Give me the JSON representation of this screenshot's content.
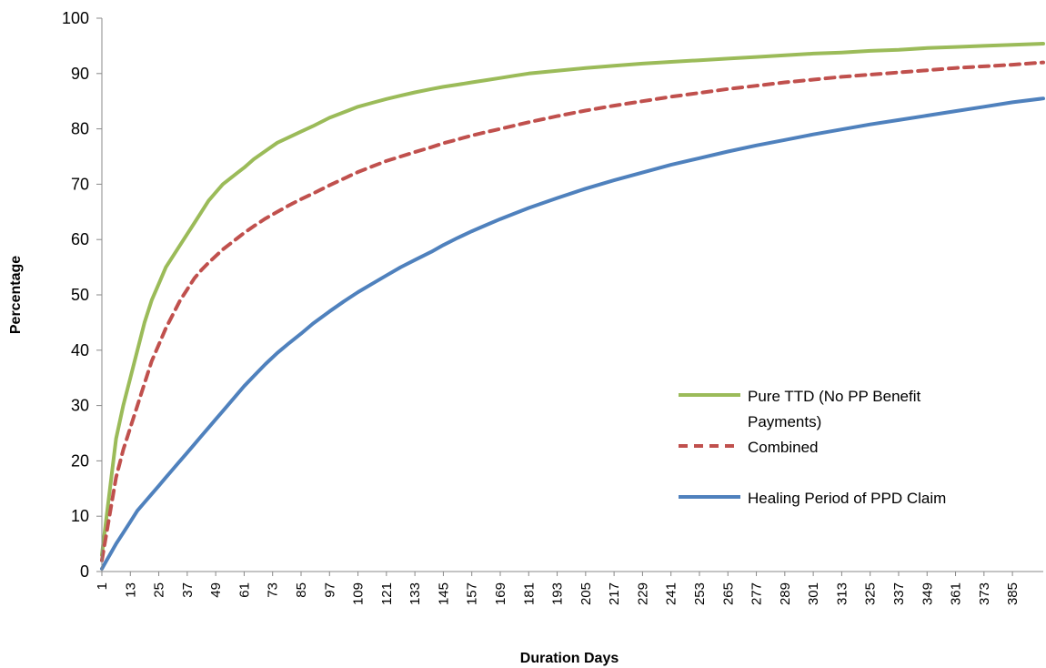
{
  "chart_data": {
    "type": "line",
    "title": "",
    "xlabel": "Duration Days",
    "ylabel": "Percentage",
    "xlim": [
      1,
      398
    ],
    "ylim": [
      0,
      100
    ],
    "y_ticks": [
      0,
      10,
      20,
      30,
      40,
      50,
      60,
      70,
      80,
      90,
      100
    ],
    "x_tick_labels": [
      "1",
      "13",
      "25",
      "37",
      "49",
      "61",
      "73",
      "85",
      "97",
      "109",
      "121",
      "133",
      "145",
      "157",
      "169",
      "181",
      "193",
      "205",
      "217",
      "229",
      "241",
      "253",
      "265",
      "277",
      "289",
      "301",
      "313",
      "325",
      "337",
      "349",
      "361",
      "373",
      "385"
    ],
    "grid": false,
    "legend_position": "right",
    "legend": [
      {
        "line1": "Pure TTD (No PP Benefit",
        "line2": "Payments)"
      },
      {
        "line1": "Combined"
      },
      {
        "line1": "Healing Period of PPD Claim"
      }
    ],
    "series": [
      {
        "name": "Pure TTD (No PP Benefit Payments)",
        "color": "#9BBB59",
        "dash": "solid",
        "x": [
          1,
          3,
          5,
          7,
          10,
          13,
          16,
          19,
          22,
          25,
          28,
          31,
          34,
          37,
          40,
          43,
          46,
          49,
          52,
          55,
          58,
          61,
          65,
          70,
          75,
          80,
          85,
          90,
          97,
          103,
          109,
          115,
          121,
          127,
          133,
          140,
          145,
          151,
          157,
          163,
          169,
          175,
          181,
          193,
          205,
          217,
          229,
          241,
          253,
          265,
          277,
          289,
          301,
          313,
          325,
          337,
          349,
          361,
          373,
          385,
          398
        ],
        "y": [
          3,
          10,
          17,
          24,
          30,
          35,
          40,
          45,
          49,
          52,
          55,
          57,
          59,
          61,
          63,
          65,
          67,
          68.5,
          70,
          71,
          72,
          73,
          74.5,
          76,
          77.5,
          78.5,
          79.5,
          80.5,
          82,
          83,
          84,
          84.7,
          85.4,
          86,
          86.6,
          87.2,
          87.6,
          88,
          88.4,
          88.8,
          89.2,
          89.6,
          90,
          90.5,
          91,
          91.4,
          91.8,
          92.1,
          92.4,
          92.7,
          93,
          93.3,
          93.6,
          93.8,
          94.1,
          94.3,
          94.6,
          94.8,
          95,
          95.2,
          95.4
        ]
      },
      {
        "name": "Combined",
        "color": "#C0504D",
        "dash": "dashed",
        "x": [
          1,
          3,
          5,
          7,
          10,
          13,
          16,
          19,
          22,
          25,
          28,
          31,
          34,
          37,
          40,
          43,
          46,
          49,
          52,
          55,
          58,
          61,
          65,
          70,
          75,
          80,
          85,
          90,
          97,
          103,
          109,
          115,
          121,
          127,
          133,
          140,
          145,
          151,
          157,
          163,
          169,
          175,
          181,
          193,
          205,
          217,
          229,
          241,
          253,
          265,
          277,
          289,
          301,
          313,
          325,
          337,
          349,
          361,
          373,
          385,
          398
        ],
        "y": [
          2,
          7,
          12,
          17,
          22,
          26,
          30,
          34,
          38,
          41,
          44,
          46.5,
          49,
          51,
          53,
          54.5,
          55.8,
          57,
          58.2,
          59.2,
          60.2,
          61.2,
          62.4,
          63.8,
          65,
          66.2,
          67.3,
          68.3,
          69.8,
          71,
          72.2,
          73.2,
          74.2,
          75,
          75.8,
          76.7,
          77.4,
          78.1,
          78.8,
          79.4,
          80,
          80.6,
          81.2,
          82.3,
          83.3,
          84.2,
          85,
          85.8,
          86.5,
          87.2,
          87.8,
          88.4,
          88.9,
          89.4,
          89.8,
          90.2,
          90.6,
          91,
          91.3,
          91.6,
          92
        ]
      },
      {
        "name": "Healing Period of PPD Claim",
        "color": "#4F81BD",
        "dash": "solid",
        "x": [
          1,
          3,
          5,
          7,
          10,
          13,
          16,
          19,
          22,
          25,
          28,
          31,
          34,
          37,
          40,
          43,
          46,
          49,
          52,
          55,
          58,
          61,
          65,
          70,
          75,
          80,
          85,
          90,
          97,
          103,
          109,
          115,
          121,
          127,
          133,
          140,
          145,
          151,
          157,
          163,
          169,
          175,
          181,
          193,
          205,
          217,
          229,
          241,
          253,
          265,
          277,
          289,
          301,
          313,
          325,
          337,
          349,
          361,
          373,
          385,
          398
        ],
        "y": [
          0.5,
          2,
          3.5,
          5,
          7,
          9,
          11,
          12.5,
          14,
          15.5,
          17,
          18.5,
          20,
          21.5,
          23,
          24.5,
          26,
          27.5,
          29,
          30.5,
          32,
          33.5,
          35.3,
          37.5,
          39.5,
          41.3,
          43,
          44.8,
          47,
          48.8,
          50.5,
          52,
          53.5,
          55,
          56.3,
          57.8,
          59,
          60.3,
          61.5,
          62.6,
          63.7,
          64.7,
          65.7,
          67.5,
          69.2,
          70.7,
          72.1,
          73.5,
          74.7,
          75.9,
          77,
          78,
          79,
          79.9,
          80.8,
          81.6,
          82.4,
          83.2,
          84,
          84.8,
          85.5
        ]
      }
    ]
  }
}
